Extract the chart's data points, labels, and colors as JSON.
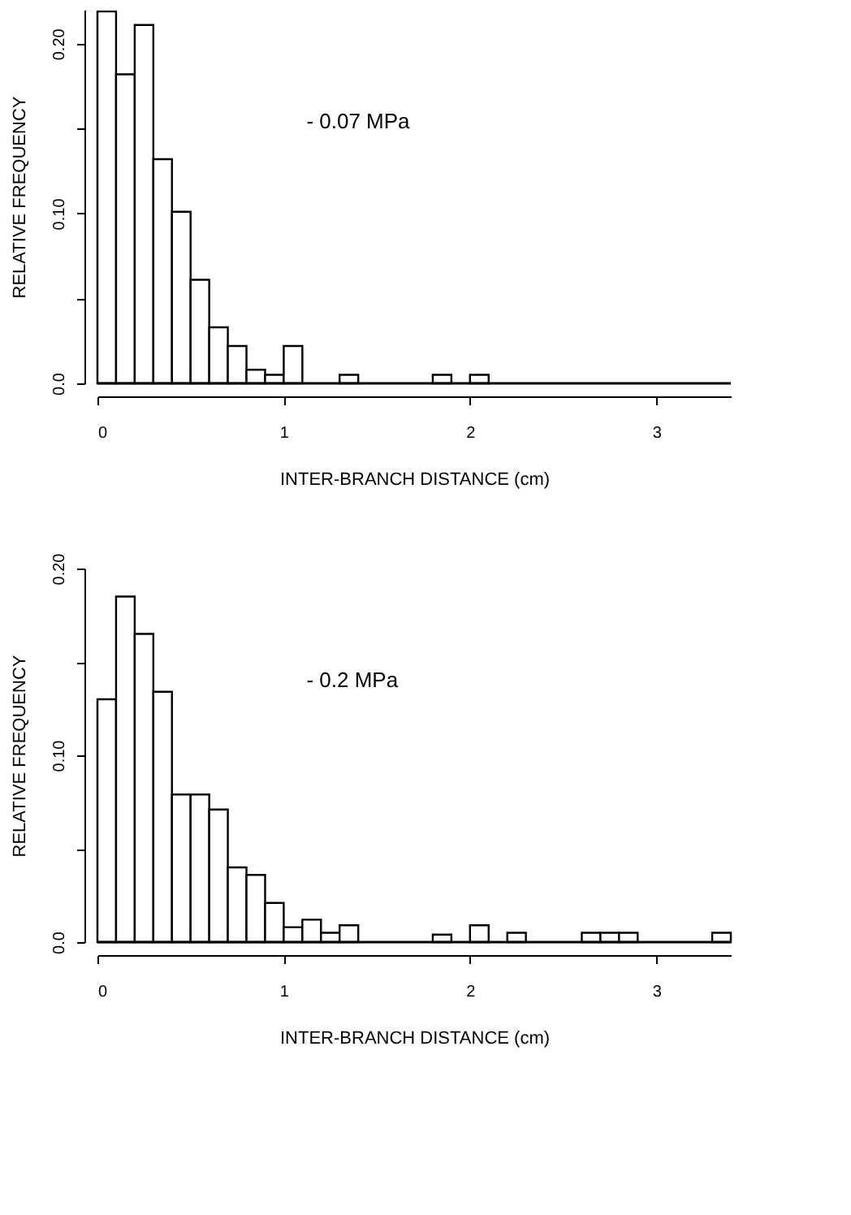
{
  "chart_data": [
    {
      "type": "histogram",
      "xlabel": "INTER-BRANCH DISTANCE (cm)",
      "ylabel": "RELATIVE FREQUENCY",
      "annotations": [
        "- 0.07 MPa"
      ],
      "bins": [
        0,
        0.1,
        0.2,
        0.3,
        0.4,
        0.5,
        0.6,
        0.7,
        0.8,
        0.9,
        1.0,
        1.1,
        1.2,
        1.3,
        1.4,
        1.5,
        1.6,
        1.7,
        1.8,
        1.9,
        2.0,
        2.1,
        2.2,
        2.3,
        2.4,
        2.5,
        2.6,
        2.7,
        2.8,
        2.9,
        3.0,
        3.1,
        3.2,
        3.3,
        3.4
      ],
      "values": [
        0.219,
        0.182,
        0.211,
        0.132,
        0.101,
        0.061,
        0.033,
        0.022,
        0.008,
        0.005,
        0.022,
        0,
        0,
        0.005,
        0,
        0,
        0,
        0,
        0.005,
        0,
        0.005,
        0,
        0,
        0,
        0,
        0,
        0,
        0,
        0,
        0,
        0,
        0,
        0,
        0
      ],
      "color": "#ffffff",
      "xlim": [
        0,
        3.4
      ],
      "xticks": [
        0,
        1,
        2,
        3
      ],
      "ylim": [
        0,
        0.22
      ],
      "yticks": [
        {
          "value": 0,
          "label": "0.0"
        },
        {
          "value": 0.05,
          "label": null
        },
        {
          "value": 0.1,
          "label": "0.10"
        },
        {
          "value": 0.15,
          "label": null
        },
        {
          "value": 0.2,
          "label": "0.20"
        }
      ],
      "grid": false
    },
    {
      "type": "histogram",
      "xlabel": "INTER-BRANCH DISTANCE (cm)",
      "ylabel": "RELATIVE FREQUENCY",
      "annotations": [
        "- 0.2  MPa"
      ],
      "bins": [
        0,
        0.1,
        0.2,
        0.3,
        0.4,
        0.5,
        0.6,
        0.7,
        0.8,
        0.9,
        1.0,
        1.1,
        1.2,
        1.3,
        1.4,
        1.5,
        1.6,
        1.7,
        1.8,
        1.9,
        2.0,
        2.1,
        2.2,
        2.3,
        2.4,
        2.5,
        2.6,
        2.7,
        2.8,
        2.9,
        3.0,
        3.1,
        3.2,
        3.3,
        3.4
      ],
      "values": [
        0.13,
        0.185,
        0.165,
        0.134,
        0.079,
        0.079,
        0.071,
        0.04,
        0.036,
        0.021,
        0.008,
        0.012,
        0.005,
        0.009,
        0,
        0,
        0,
        0,
        0.004,
        0,
        0.009,
        0,
        0.005,
        0,
        0,
        0,
        0.005,
        0.005,
        0.005,
        0,
        0,
        0,
        0,
        0.005
      ],
      "color": "#ffffff",
      "xlim": [
        0,
        3.4
      ],
      "xticks": [
        0,
        1,
        2,
        3
      ],
      "ylim": [
        0,
        0.2
      ],
      "yticks": [
        {
          "value": 0,
          "label": "0.0"
        },
        {
          "value": 0.05,
          "label": null
        },
        {
          "value": 0.1,
          "label": "0.10"
        },
        {
          "value": 0.15,
          "label": null
        },
        {
          "value": 0.2,
          "label": "0.20"
        }
      ],
      "grid": false
    }
  ]
}
